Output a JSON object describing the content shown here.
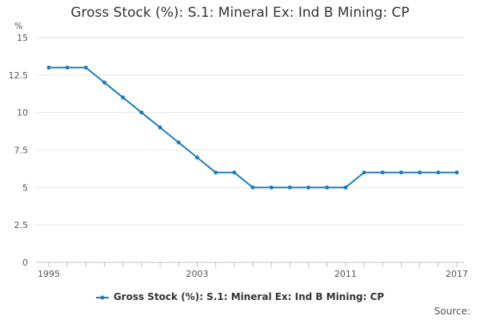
{
  "chart_data": {
    "type": "line",
    "title": "Gross Stock (%): S.1: Mineral Ex: Ind B Mining: CP",
    "ylabel": "%",
    "ylim": [
      0,
      15
    ],
    "yticks": [
      "0",
      "2.5",
      "5",
      "7.5",
      "10",
      "12.5",
      "15"
    ],
    "xlim": [
      1995,
      2017
    ],
    "xticks": [
      "1995",
      "2003",
      "2011",
      "2017"
    ],
    "grid": "horizontal",
    "legend": "bottom-center",
    "series": [
      {
        "name": "Gross Stock (%): S.1: Mineral Ex: Ind B Mining: CP",
        "color": "#1f7bb6",
        "x": [
          1995,
          1996,
          1997,
          1998,
          1999,
          2000,
          2001,
          2002,
          2003,
          2004,
          2005,
          2006,
          2007,
          2008,
          2009,
          2010,
          2011,
          2012,
          2013,
          2014,
          2015,
          2016,
          2017
        ],
        "values": [
          13,
          13,
          13,
          12,
          11,
          10,
          9,
          8,
          7,
          6,
          6,
          5,
          5,
          5,
          5,
          5,
          5,
          6,
          6,
          6,
          6,
          6,
          6
        ]
      }
    ],
    "source_label": "Source:"
  }
}
